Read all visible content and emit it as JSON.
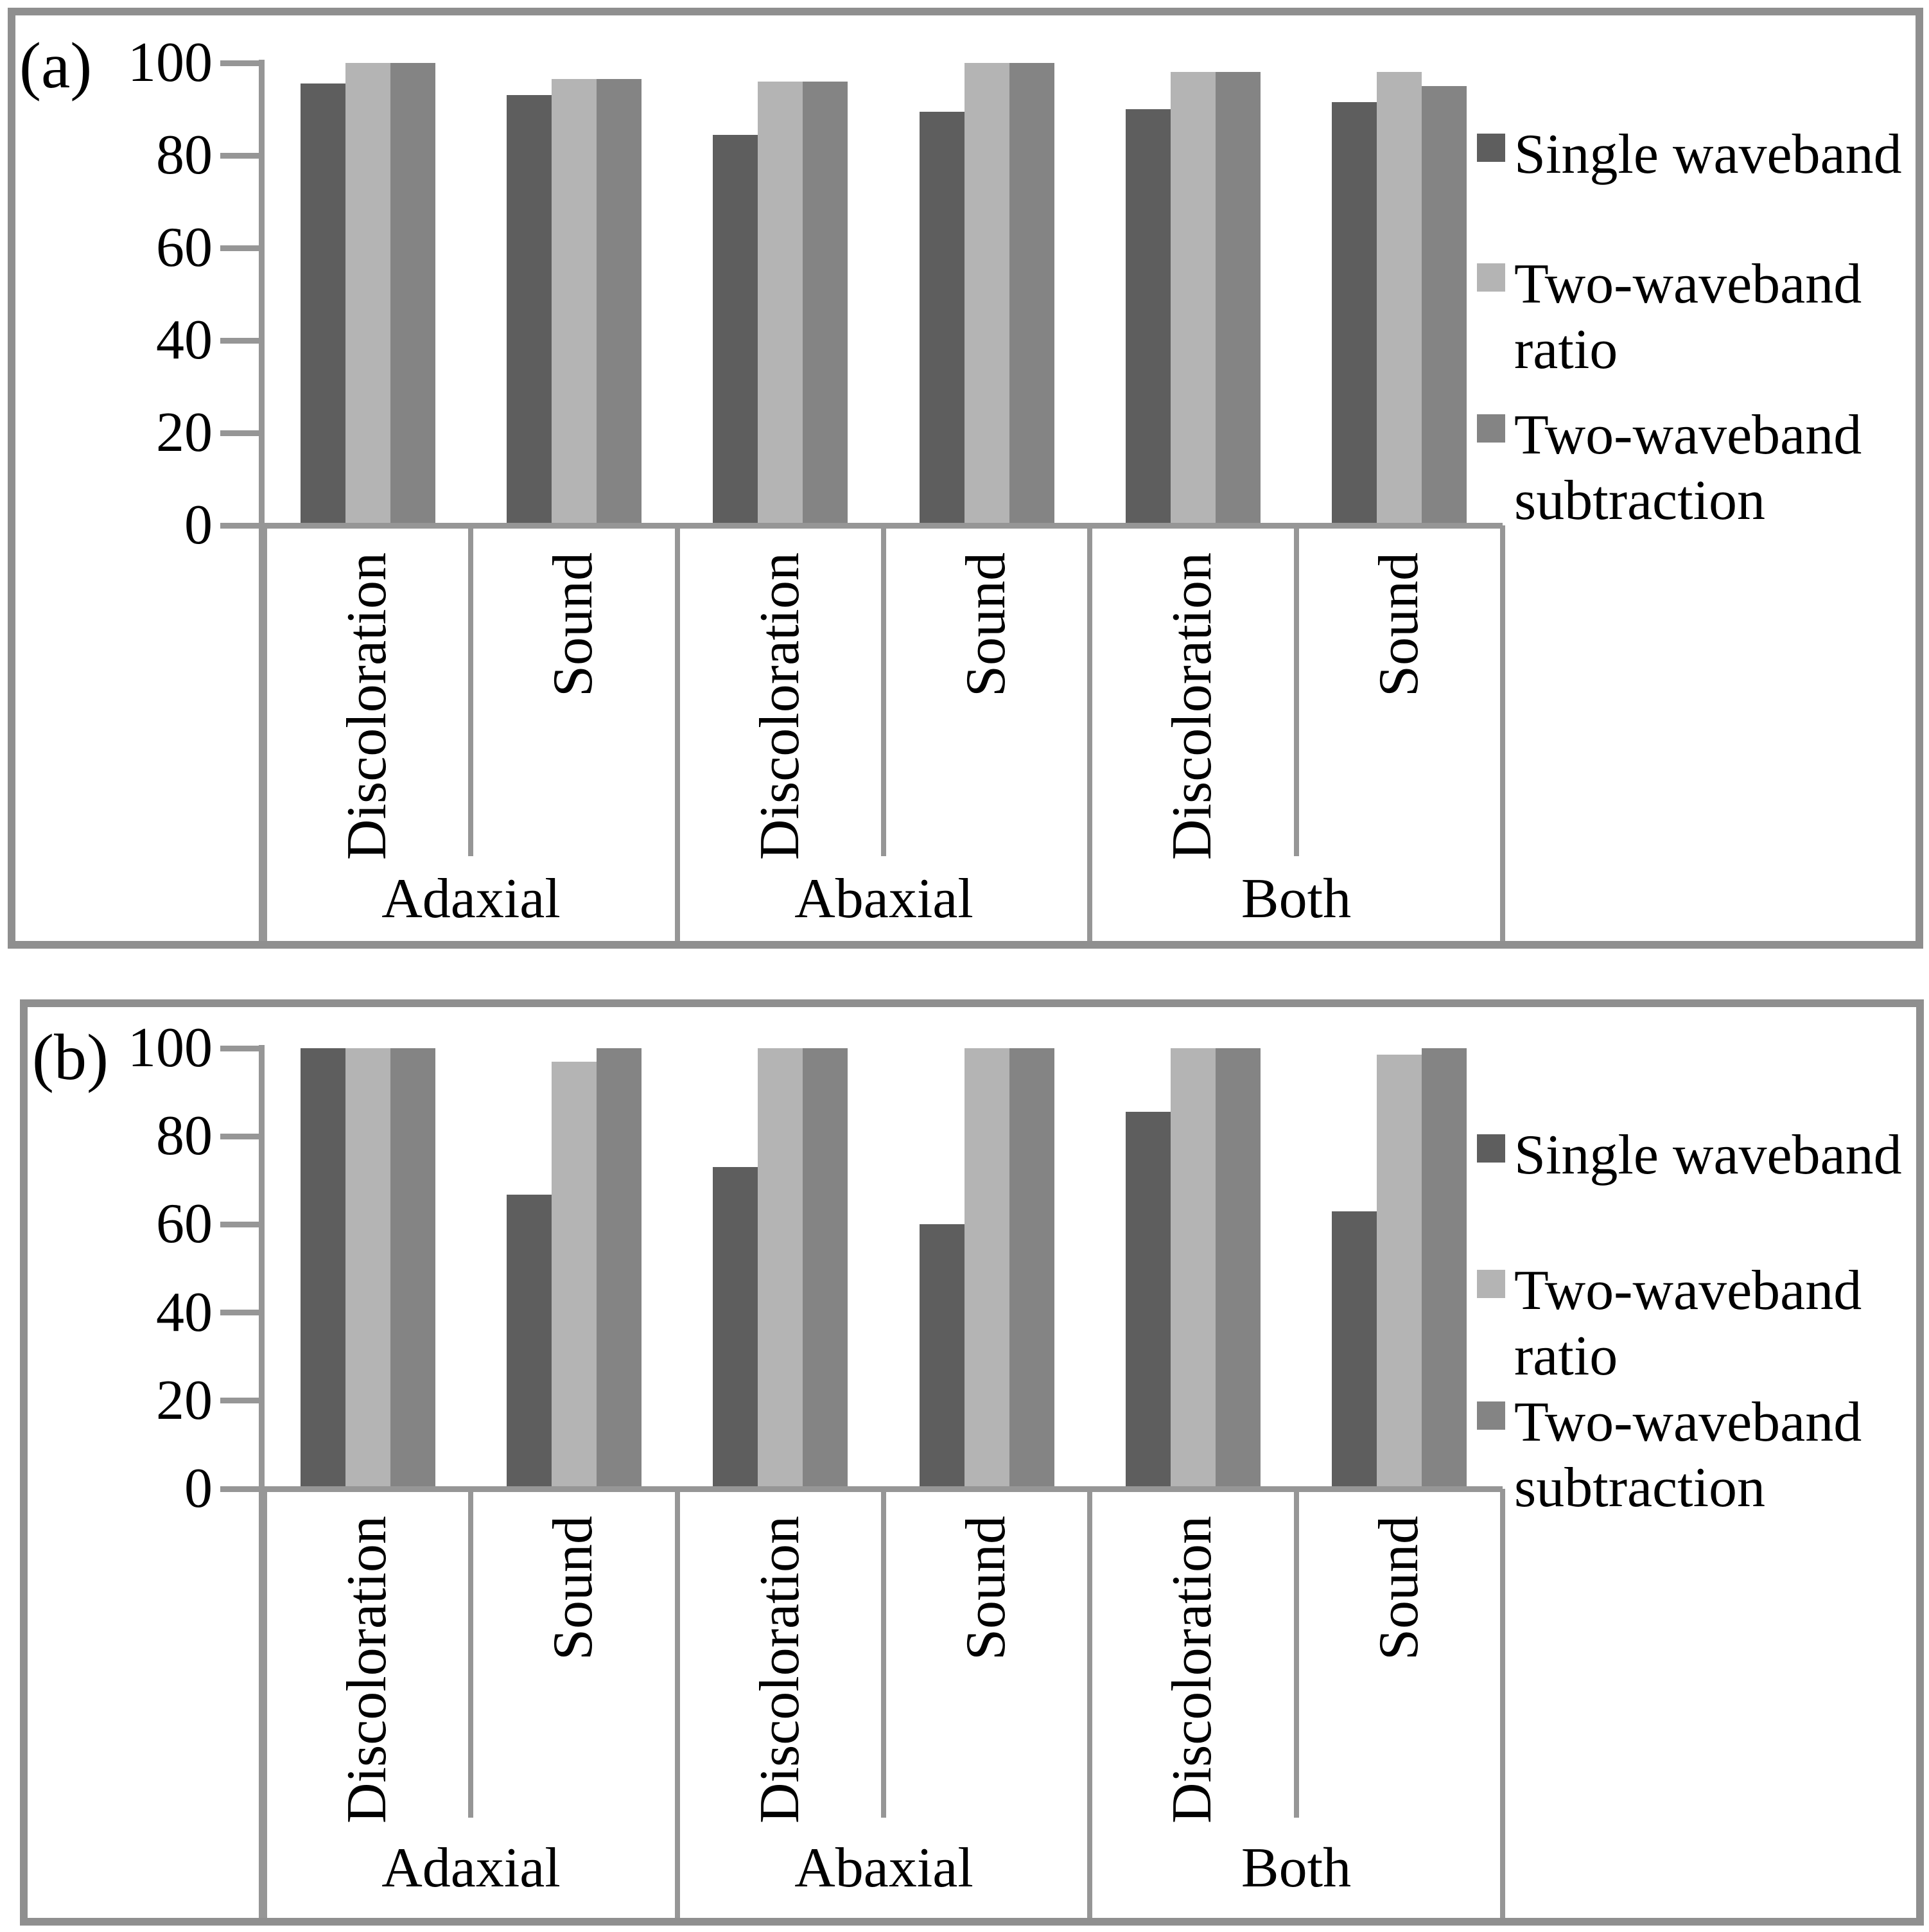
{
  "page_background": "#ffffff",
  "colors": {
    "series": [
      "#5e5e5e",
      "#b4b4b4",
      "#848484"
    ],
    "axis_line": "#969696",
    "panel_border": "#8f8f8f",
    "text": "#000000"
  },
  "y_axis": {
    "min": 0,
    "max": 100,
    "ticks": [
      0,
      20,
      40,
      60,
      80,
      100
    ]
  },
  "legend": {
    "items": [
      {
        "label": "Single waveband"
      },
      {
        "label": "Two-waveband ratio"
      },
      {
        "label": "Two-waveband subtraction"
      }
    ]
  },
  "chart_data": [
    {
      "panel_label": "(a)",
      "type": "bar",
      "ylim": [
        0,
        100
      ],
      "grid": false,
      "legend_position": "right",
      "groups": [
        "Adaxial",
        "Abaxial",
        "Both"
      ],
      "categories_per_group": [
        "Discoloration",
        "Sound"
      ],
      "categories": [
        "Adaxial Discoloration",
        "Adaxial Sound",
        "Abaxial Discoloration",
        "Abaxial Sound",
        "Both Discoloration",
        "Both Sound"
      ],
      "series": [
        {
          "name": "Single waveband",
          "values": [
            95.5,
            93,
            84.5,
            89.5,
            90,
            91.5
          ]
        },
        {
          "name": "Two-waveband ratio",
          "values": [
            100,
            96.5,
            96,
            100,
            98,
            98
          ]
        },
        {
          "name": "Two-waveband subtraction",
          "values": [
            100,
            96.5,
            96,
            100,
            98,
            95
          ]
        }
      ]
    },
    {
      "panel_label": "(b)",
      "type": "bar",
      "ylim": [
        0,
        100
      ],
      "grid": false,
      "legend_position": "right",
      "groups": [
        "Adaxial",
        "Abaxial",
        "Both"
      ],
      "categories_per_group": [
        "Discoloration",
        "Sound"
      ],
      "categories": [
        "Adaxial Discoloration",
        "Adaxial Sound",
        "Abaxial Discoloration",
        "Abaxial Sound",
        "Both Discoloration",
        "Both Sound"
      ],
      "series": [
        {
          "name": "Single waveband",
          "values": [
            100,
            66.7,
            73,
            60,
            85.5,
            63
          ]
        },
        {
          "name": "Two-waveband ratio",
          "values": [
            100,
            97,
            100,
            100,
            100,
            98.5
          ]
        },
        {
          "name": "Two-waveband subtraction",
          "values": [
            100,
            100,
            100,
            100,
            100,
            100
          ]
        }
      ]
    }
  ]
}
